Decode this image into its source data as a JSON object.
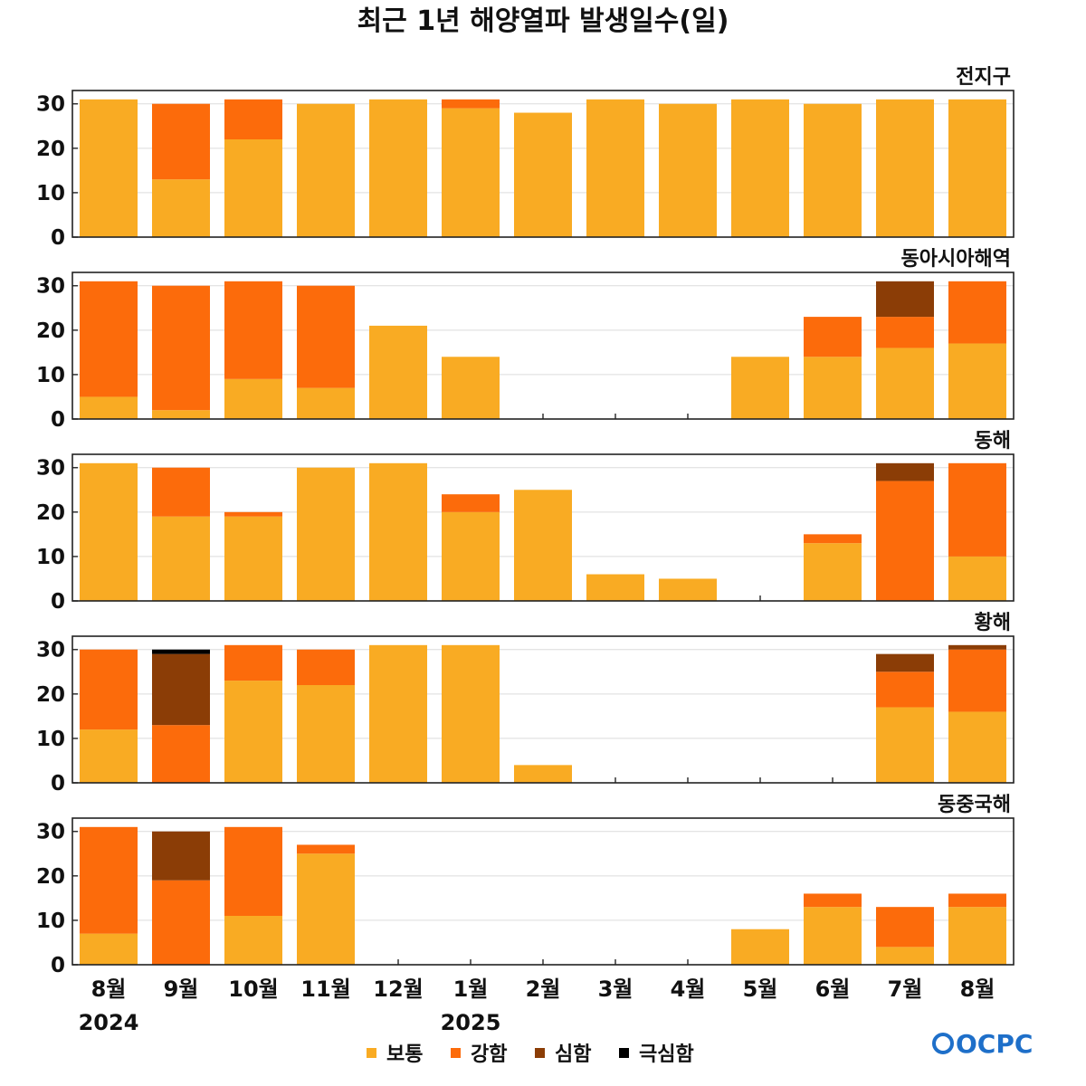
{
  "colors": {
    "normal": "#F9AB23",
    "strong": "#FC6B0B",
    "severe": "#8B3D06",
    "extreme": "#000000",
    "logo": "#1E6FC9"
  },
  "logo_text": "OCPC",
  "chart_data": {
    "type": "bar",
    "stacked": true,
    "title": "최근 1년 해양열파 발생일수(일)",
    "categories": [
      "8월",
      "9월",
      "10월",
      "11월",
      "12월",
      "1월",
      "2월",
      "3월",
      "4월",
      "5월",
      "6월",
      "7월",
      "8월"
    ],
    "year_labels": [
      {
        "index": 0,
        "label": "2024"
      },
      {
        "index": 5,
        "label": "2025"
      }
    ],
    "ylim": [
      0,
      33
    ],
    "yticks": [
      0,
      10,
      20,
      30
    ],
    "legend": [
      {
        "key": "normal",
        "label": "보통"
      },
      {
        "key": "strong",
        "label": "강함"
      },
      {
        "key": "severe",
        "label": "심함"
      },
      {
        "key": "extreme",
        "label": "극심함"
      }
    ],
    "legend_position": "bottom",
    "panels": [
      {
        "name": "전지구",
        "series": {
          "normal": [
            31,
            13,
            22,
            30,
            31,
            29,
            28,
            31,
            30,
            31,
            30,
            31,
            31
          ],
          "strong": [
            0,
            17,
            9,
            0,
            0,
            2,
            0,
            0,
            0,
            0,
            0,
            0,
            0
          ],
          "severe": [
            0,
            0,
            0,
            0,
            0,
            0,
            0,
            0,
            0,
            0,
            0,
            0,
            0
          ],
          "extreme": [
            0,
            0,
            0,
            0,
            0,
            0,
            0,
            0,
            0,
            0,
            0,
            0,
            0
          ]
        }
      },
      {
        "name": "동아시아해역",
        "series": {
          "normal": [
            5,
            2,
            9,
            7,
            21,
            14,
            0,
            0,
            0,
            14,
            14,
            16,
            17
          ],
          "strong": [
            26,
            28,
            22,
            23,
            0,
            0,
            0,
            0,
            0,
            0,
            9,
            7,
            14
          ],
          "severe": [
            0,
            0,
            0,
            0,
            0,
            0,
            0,
            0,
            0,
            0,
            0,
            8,
            0
          ],
          "extreme": [
            0,
            0,
            0,
            0,
            0,
            0,
            0,
            0,
            0,
            0,
            0,
            0,
            0
          ]
        }
      },
      {
        "name": "동해",
        "series": {
          "normal": [
            31,
            19,
            19,
            30,
            31,
            20,
            25,
            6,
            5,
            0,
            13,
            0,
            10
          ],
          "strong": [
            0,
            11,
            1,
            0,
            0,
            4,
            0,
            0,
            0,
            0,
            2,
            27,
            21
          ],
          "severe": [
            0,
            0,
            0,
            0,
            0,
            0,
            0,
            0,
            0,
            0,
            0,
            4,
            0
          ],
          "extreme": [
            0,
            0,
            0,
            0,
            0,
            0,
            0,
            0,
            0,
            0,
            0,
            0,
            0
          ]
        }
      },
      {
        "name": "황해",
        "series": {
          "normal": [
            12,
            0,
            23,
            22,
            31,
            31,
            4,
            0,
            0,
            0,
            0,
            17,
            16
          ],
          "strong": [
            18,
            13,
            8,
            8,
            0,
            0,
            0,
            0,
            0,
            0,
            0,
            8,
            14
          ],
          "severe": [
            0,
            16,
            0,
            0,
            0,
            0,
            0,
            0,
            0,
            0,
            0,
            4,
            1
          ],
          "extreme": [
            0,
            1,
            0,
            0,
            0,
            0,
            0,
            0,
            0,
            0,
            0,
            0,
            0
          ]
        }
      },
      {
        "name": "동중국해",
        "series": {
          "normal": [
            7,
            0,
            11,
            25,
            0,
            0,
            0,
            0,
            0,
            8,
            13,
            4,
            13
          ],
          "strong": [
            24,
            19,
            20,
            2,
            0,
            0,
            0,
            0,
            0,
            0,
            3,
            9,
            3
          ],
          "severe": [
            0,
            11,
            0,
            0,
            0,
            0,
            0,
            0,
            0,
            0,
            0,
            0,
            0
          ],
          "extreme": [
            0,
            0,
            0,
            0,
            0,
            0,
            0,
            0,
            0,
            0,
            0,
            0,
            0
          ]
        }
      }
    ]
  }
}
